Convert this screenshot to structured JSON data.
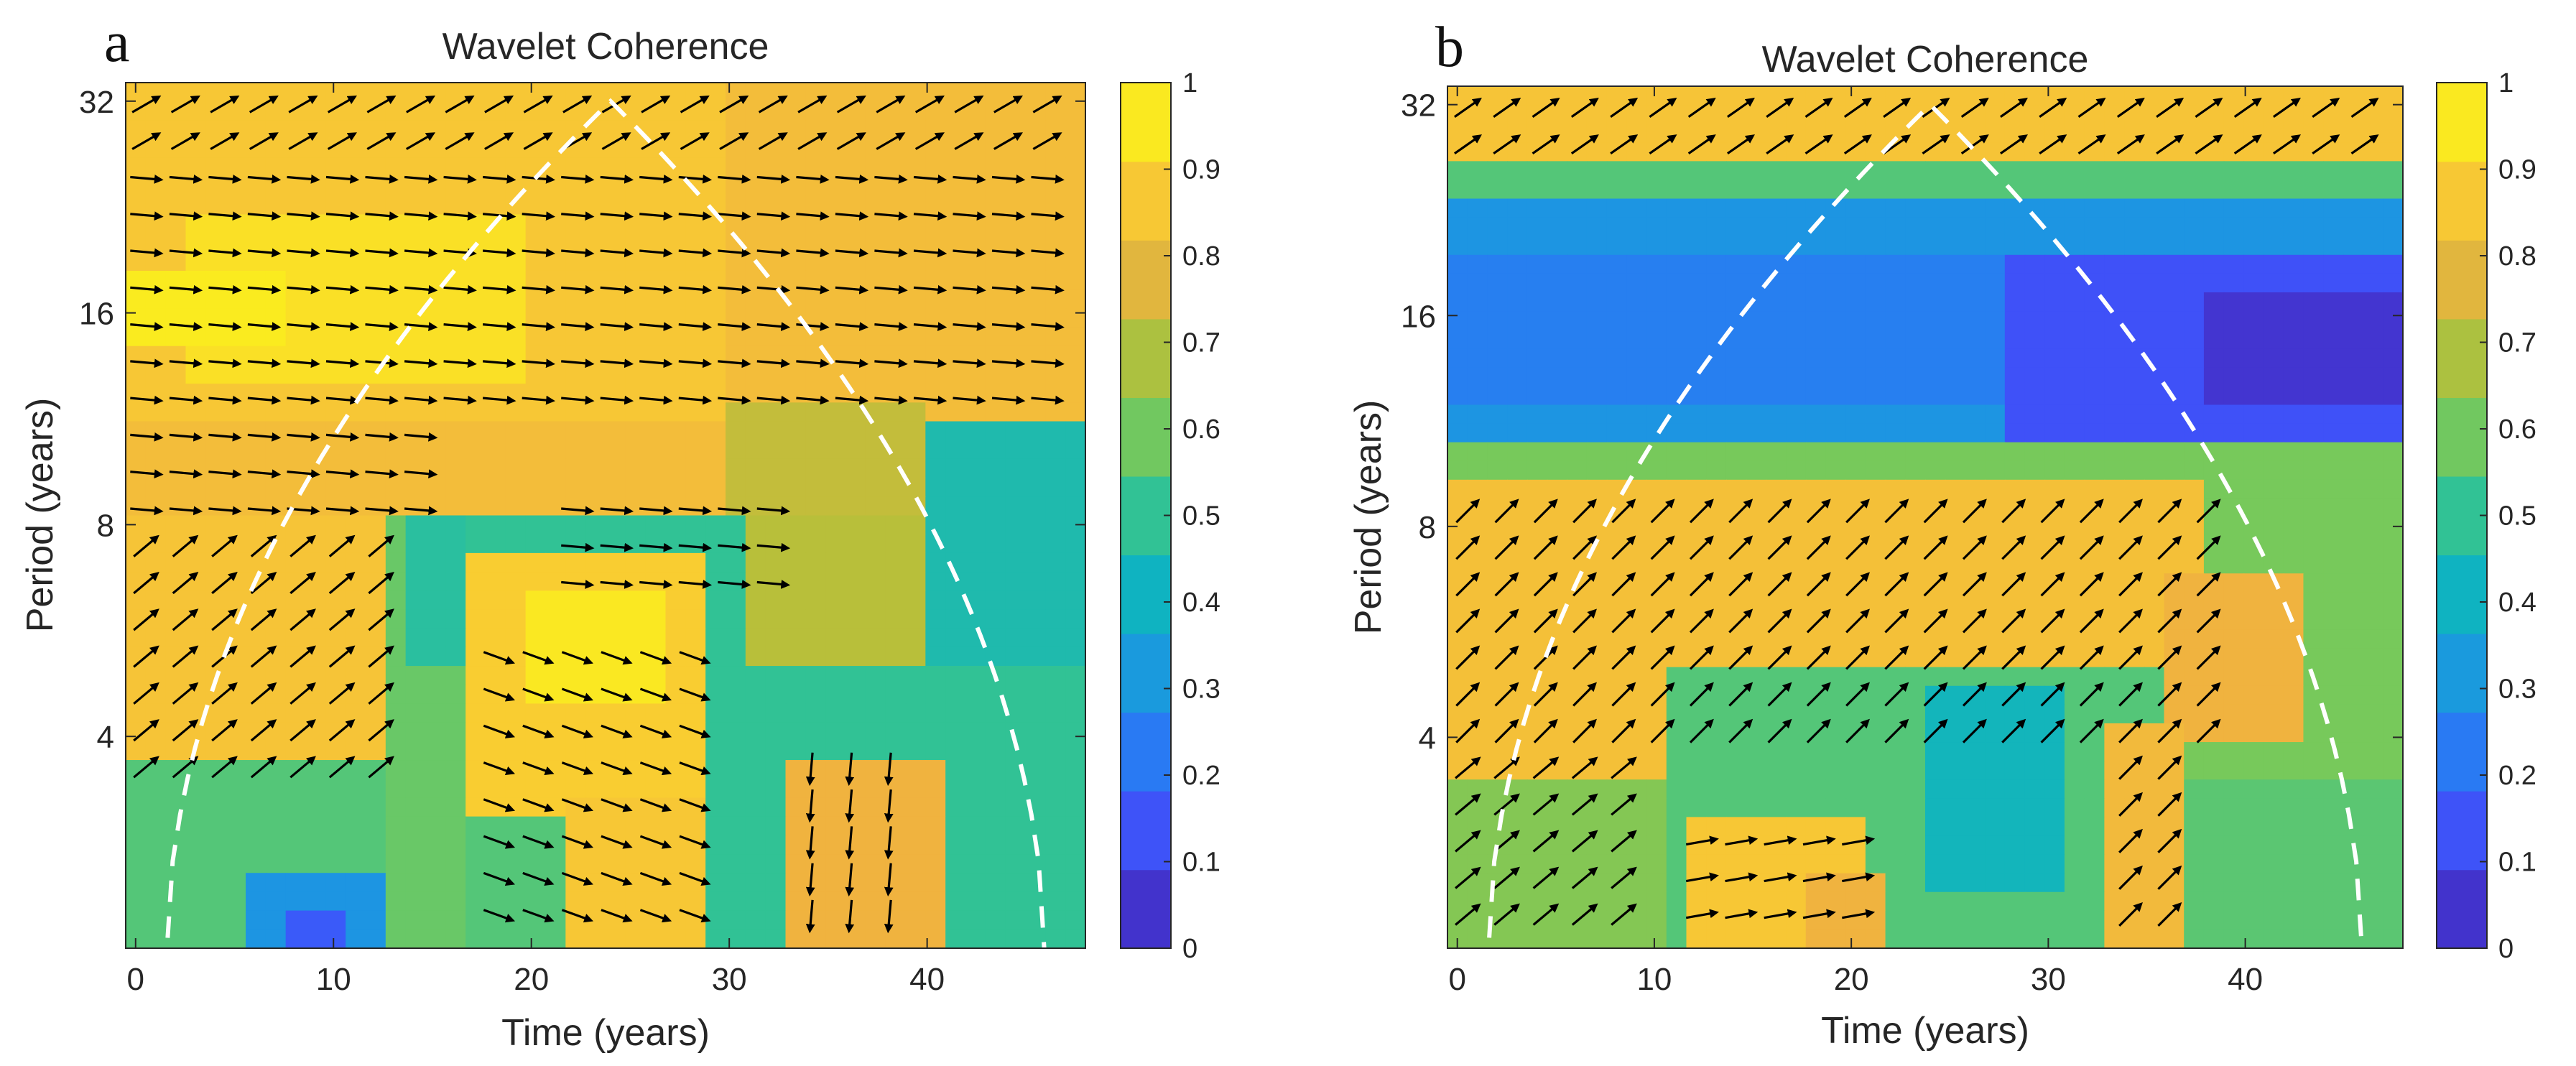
{
  "colors": {
    "colormap": [
      "#3e26a8",
      "#4743f8",
      "#2d70f9",
      "#1d95e2",
      "#0cb2c5",
      "#31c295",
      "#77c95b",
      "#b8bf3a",
      "#f0b33f",
      "#fbd42e",
      "#f9fb15"
    ],
    "cone_of_influence": "#ffffff",
    "arrows": "#000000",
    "axes": "#262626"
  },
  "chart_data": [
    {
      "type": "heatmap",
      "panel_label": "a",
      "title": "Wavelet Coherence",
      "xlabel": "Time (years)",
      "ylabel": "Period (years)",
      "xlim": [
        -0.5,
        48
      ],
      "ylim_period": [
        2,
        34
      ],
      "yscale": "log2",
      "xticks": [
        0,
        10,
        20,
        30,
        40
      ],
      "xtick_labels": [
        "0",
        "10",
        "20",
        "30",
        "40"
      ],
      "yticks": [
        4,
        8,
        16,
        32
      ],
      "ytick_labels": [
        "4",
        "8",
        "16",
        "32"
      ],
      "colorbar": {
        "range": [
          0,
          1
        ],
        "ticks": [
          0,
          0.1,
          0.2,
          0.3,
          0.4,
          0.5,
          0.6,
          0.7,
          0.8,
          0.9,
          1
        ],
        "tick_labels": [
          "0",
          "0.1",
          "0.2",
          "0.3",
          "0.4",
          "0.5",
          "0.6",
          "0.7",
          "0.8",
          "0.9",
          "1"
        ]
      },
      "coherence_regions": [
        {
          "tmin": -1,
          "tmax": 49,
          "pmin": 11,
          "pmax": 40,
          "value": 0.83
        },
        {
          "tmin": -1,
          "tmax": 30,
          "pmin": 11,
          "pmax": 40,
          "value": 0.86
        },
        {
          "tmin": 3,
          "tmax": 20,
          "pmin": 13,
          "pmax": 22,
          "value": 0.93
        },
        {
          "tmin": -1,
          "tmax": 8,
          "pmin": 14,
          "pmax": 18,
          "value": 0.96
        },
        {
          "tmin": -1,
          "tmax": 34,
          "pmin": 8,
          "pmax": 11,
          "value": 0.83
        },
        {
          "tmin": 34,
          "tmax": 49,
          "pmin": 5,
          "pmax": 11,
          "value": 0.45
        },
        {
          "tmin": 30,
          "tmax": 40,
          "pmin": 8.5,
          "pmax": 12,
          "value": 0.72
        },
        {
          "tmin": -1,
          "tmax": 13,
          "pmin": 3.6,
          "pmax": 8.5,
          "value": 0.85
        },
        {
          "tmin": 13,
          "tmax": 17,
          "pmin": 2,
          "pmax": 8.5,
          "value": 0.58
        },
        {
          "tmin": 14,
          "tmax": 17,
          "pmin": 5,
          "pmax": 8,
          "value": 0.48
        },
        {
          "tmin": 17,
          "tmax": 29,
          "pmin": 3,
          "pmax": 7.5,
          "value": 0.88
        },
        {
          "tmin": 20,
          "tmax": 27,
          "pmin": 4.5,
          "pmax": 6.5,
          "value": 0.95
        },
        {
          "tmin": 22,
          "tmax": 29,
          "pmin": 2,
          "pmax": 3.2,
          "value": 0.86
        },
        {
          "tmin": 17,
          "tmax": 22,
          "pmin": 2,
          "pmax": 3,
          "value": 0.55
        },
        {
          "tmin": -1,
          "tmax": 13,
          "pmin": 2,
          "pmax": 3.6,
          "value": 0.55
        },
        {
          "tmin": 6,
          "tmax": 13,
          "pmin": 2,
          "pmax": 2.6,
          "value": 0.3
        },
        {
          "tmin": 8,
          "tmax": 11,
          "pmin": 2,
          "pmax": 2.3,
          "value": 0.15
        },
        {
          "tmin": 29,
          "tmax": 34,
          "pmin": 2,
          "pmax": 8,
          "value": 0.5
        },
        {
          "tmin": 31,
          "tmax": 40,
          "pmin": 5,
          "pmax": 8,
          "value": 0.7
        },
        {
          "tmin": 33,
          "tmax": 41,
          "pmin": 2,
          "pmax": 3.7,
          "value": 0.8
        },
        {
          "tmin": 41,
          "tmax": 49,
          "pmin": 2,
          "pmax": 5,
          "value": 0.5
        }
      ],
      "arrow_regions": [
        {
          "tmin": 0,
          "tmax": 48,
          "pmin": 26,
          "pmax": 34,
          "angle_deg": 30
        },
        {
          "tmin": 0,
          "tmax": 48,
          "pmin": 11.5,
          "pmax": 26,
          "angle_deg": -5
        },
        {
          "tmin": 0,
          "tmax": 16,
          "pmin": 8,
          "pmax": 11.5,
          "angle_deg": -5
        },
        {
          "tmin": 22,
          "tmax": 33,
          "pmin": 6.5,
          "pmax": 8.5,
          "angle_deg": -5
        },
        {
          "tmin": 0,
          "tmax": 13,
          "pmin": 3.6,
          "pmax": 7.5,
          "angle_deg": 40
        },
        {
          "tmin": 18,
          "tmax": 29,
          "pmin": 2,
          "pmax": 5.5,
          "angle_deg": -20
        },
        {
          "tmin": 34,
          "tmax": 40,
          "pmin": 2,
          "pmax": 3.8,
          "angle_deg": -95
        }
      ],
      "cone_of_influence": {
        "t_start": 1.5,
        "t_peak": 24,
        "t_end": 46,
        "p_peak": 32
      }
    },
    {
      "type": "heatmap",
      "panel_label": "b",
      "title": "Wavelet Coherence",
      "xlabel": "Time (years)",
      "ylabel": "Period (years)",
      "xlim": [
        -0.5,
        48
      ],
      "ylim_period": [
        2,
        34
      ],
      "yscale": "log2",
      "xticks": [
        0,
        10,
        20,
        30,
        40
      ],
      "xtick_labels": [
        "0",
        "10",
        "20",
        "30",
        "40"
      ],
      "yticks": [
        4,
        8,
        16,
        32
      ],
      "ytick_labels": [
        "4",
        "8",
        "16",
        "32"
      ],
      "colorbar": {
        "range": [
          0,
          1
        ],
        "ticks": [
          0,
          0.1,
          0.2,
          0.3,
          0.4,
          0.5,
          0.6,
          0.7,
          0.8,
          0.9,
          1
        ],
        "tick_labels": [
          "0",
          "0.1",
          "0.2",
          "0.3",
          "0.4",
          "0.5",
          "0.6",
          "0.7",
          "0.8",
          "0.9",
          "1"
        ]
      },
      "coherence_regions": [
        {
          "tmin": -1,
          "tmax": 49,
          "pmin": 2,
          "pmax": 40,
          "value": 0.6
        },
        {
          "tmin": -1,
          "tmax": 49,
          "pmin": 26,
          "pmax": 40,
          "value": 0.85
        },
        {
          "tmin": -1,
          "tmax": 49,
          "pmin": 23,
          "pmax": 26,
          "value": 0.55
        },
        {
          "tmin": -1,
          "tmax": 49,
          "pmin": 10,
          "pmax": 23,
          "value": 0.3
        },
        {
          "tmin": 0,
          "tmax": 30,
          "pmin": 12,
          "pmax": 20,
          "value": 0.24
        },
        {
          "tmin": 28,
          "tmax": 49,
          "pmin": 10.5,
          "pmax": 19,
          "value": 0.13
        },
        {
          "tmin": 38,
          "tmax": 49,
          "pmin": 12,
          "pmax": 17,
          "value": 0.05
        },
        {
          "tmin": -1,
          "tmax": 49,
          "pmin": 9.5,
          "pmax": 10.5,
          "value": 0.6
        },
        {
          "tmin": -1,
          "tmax": 38,
          "pmin": 5,
          "pmax": 9.5,
          "value": 0.84
        },
        {
          "tmin": 36,
          "tmax": 43,
          "pmin": 4,
          "pmax": 7,
          "value": 0.8
        },
        {
          "tmin": -1,
          "tmax": 11,
          "pmin": 3.4,
          "pmax": 5,
          "value": 0.84
        },
        {
          "tmin": -1,
          "tmax": 11,
          "pmin": 2,
          "pmax": 3.4,
          "value": 0.62
        },
        {
          "tmin": 11,
          "tmax": 36,
          "pmin": 2,
          "pmax": 5,
          "value": 0.55
        },
        {
          "tmin": 24,
          "tmax": 31,
          "pmin": 2.4,
          "pmax": 4.6,
          "value": 0.42
        },
        {
          "tmin": 12,
          "tmax": 21,
          "pmin": 2,
          "pmax": 3.1,
          "value": 0.86
        },
        {
          "tmin": 18,
          "tmax": 22,
          "pmin": 2,
          "pmax": 2.6,
          "value": 0.8
        },
        {
          "tmin": 33,
          "tmax": 37,
          "pmin": 2,
          "pmax": 4.2,
          "value": 0.82
        },
        {
          "tmin": 37,
          "tmax": 49,
          "pmin": 2,
          "pmax": 3.4,
          "value": 0.56
        }
      ],
      "arrow_regions": [
        {
          "tmin": 0,
          "tmax": 48,
          "pmin": 26,
          "pmax": 34,
          "angle_deg": 35
        },
        {
          "tmin": 0,
          "tmax": 39,
          "pmin": 4,
          "pmax": 9.2,
          "angle_deg": 45
        },
        {
          "tmin": 0,
          "tmax": 10,
          "pmin": 2.1,
          "pmax": 4,
          "angle_deg": 40
        },
        {
          "tmin": 12,
          "tmax": 22,
          "pmin": 2,
          "pmax": 3,
          "angle_deg": 10
        },
        {
          "tmin": 33,
          "tmax": 37,
          "pmin": 2,
          "pmax": 4.2,
          "angle_deg": 45
        }
      ],
      "cone_of_influence": {
        "t_start": 1.5,
        "t_peak": 24,
        "t_end": 46,
        "p_peak": 32
      }
    }
  ]
}
